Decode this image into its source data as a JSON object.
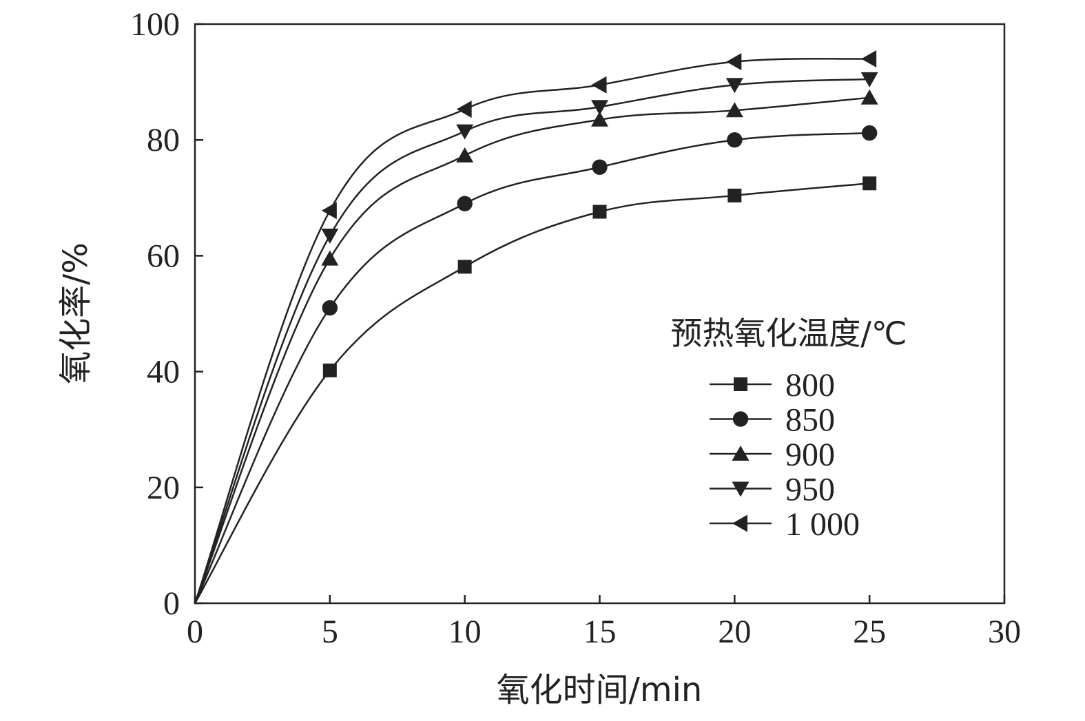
{
  "chart_data": {
    "type": "line",
    "xlabel": "氧化时间/min",
    "ylabel": "氧化率/%",
    "xlim": [
      0,
      30
    ],
    "ylim": [
      0,
      100
    ],
    "xticks": [
      "0",
      "5",
      "10",
      "15",
      "20",
      "25",
      "30"
    ],
    "yticks": [
      "0",
      "20",
      "40",
      "60",
      "80",
      "100"
    ],
    "grid": false,
    "legend": {
      "title": "预热氧化温度/℃",
      "position": "right"
    },
    "x": [
      0,
      5,
      10,
      15,
      20,
      25
    ],
    "series": [
      {
        "name": "800",
        "marker": "square",
        "values": [
          0,
          40.2,
          58.1,
          67.6,
          70.4,
          72.5
        ]
      },
      {
        "name": "850",
        "marker": "circle",
        "values": [
          0,
          51.0,
          69.0,
          75.3,
          80.0,
          81.2
        ]
      },
      {
        "name": "900",
        "marker": "triangle-up",
        "values": [
          0,
          59.5,
          77.3,
          83.5,
          85.1,
          87.3
        ]
      },
      {
        "name": "950",
        "marker": "triangle-down",
        "values": [
          0,
          63.5,
          81.5,
          85.7,
          89.5,
          90.5
        ]
      },
      {
        "name": "1 000",
        "marker": "triangle-left",
        "values": [
          0,
          67.8,
          85.3,
          89.5,
          93.5,
          94.0
        ]
      }
    ]
  }
}
